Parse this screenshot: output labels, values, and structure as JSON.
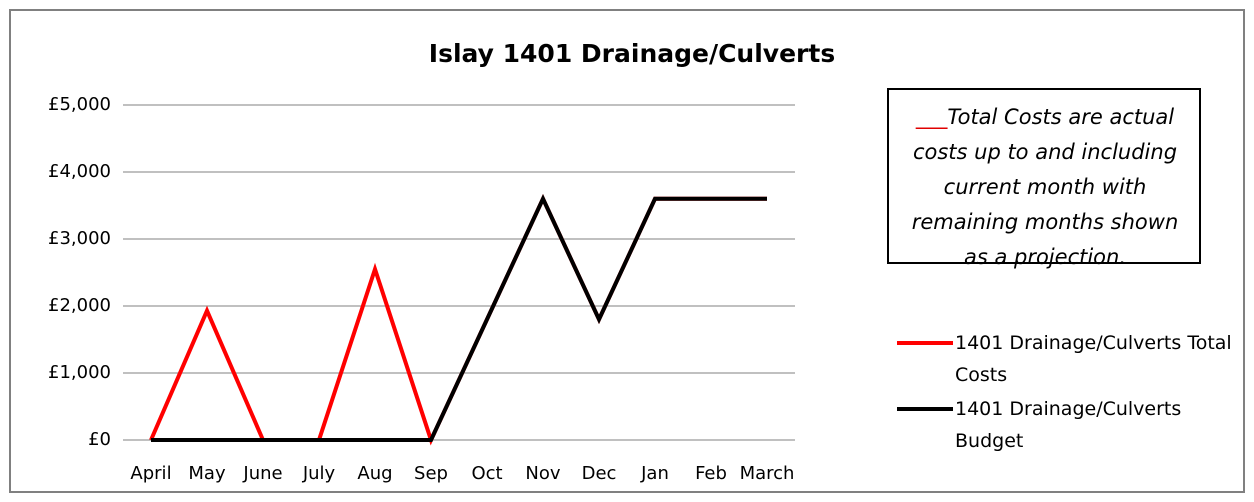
{
  "chart_data": {
    "type": "line",
    "title": "Islay 1401 Drainage/Culverts",
    "categories": [
      "April",
      "May",
      "June",
      "July",
      "Aug",
      "Sep",
      "Oct",
      "Nov",
      "Dec",
      "Jan",
      "Feb",
      "March"
    ],
    "series": [
      {
        "name": "1401 Drainage/Culverts Total Costs",
        "color": "#ff0000",
        "values": [
          0,
          1930,
          0,
          0,
          2550,
          0,
          1800,
          3600,
          1800,
          3600,
          3600,
          3600
        ]
      },
      {
        "name": "1401 Drainage/Culverts Budget",
        "color": "#000000",
        "values": [
          0,
          0,
          0,
          0,
          0,
          0,
          1800,
          3600,
          1800,
          3600,
          3600,
          3600
        ]
      }
    ],
    "ylim": [
      0,
      5000
    ],
    "yticks": [
      {
        "value": 0,
        "label": "£0"
      },
      {
        "value": 1000,
        "label": "£1,000"
      },
      {
        "value": 2000,
        "label": "£2,000"
      },
      {
        "value": 3000,
        "label": "£3,000"
      },
      {
        "value": 4000,
        "label": "£4,000"
      },
      {
        "value": 5000,
        "label": "£5,000"
      }
    ],
    "grid": true,
    "annotation": {
      "marker": "___",
      "text": "Total Costs are actual costs up to and including current month with remaining months shown as a projection."
    }
  }
}
